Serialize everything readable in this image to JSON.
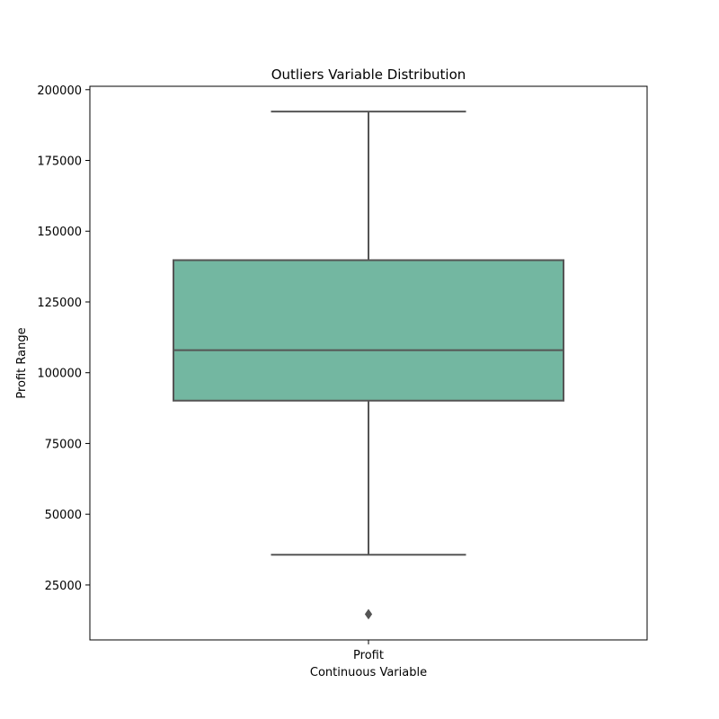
{
  "chart_data": {
    "type": "box",
    "title": "Outliers Variable Distribution",
    "xlabel": "Continuous Variable",
    "ylabel": "Profit Range",
    "categories": [
      "Profit"
    ],
    "boxes": [
      {
        "name": "Profit",
        "whisker_low": 35673,
        "q1": 90139,
        "median": 107978,
        "q3": 139766,
        "whisker_high": 192262,
        "outliers": [
          14681
        ]
      }
    ],
    "ylim": [
      5600,
      201200
    ],
    "yticks": [
      25000,
      50000,
      75000,
      100000,
      125000,
      150000,
      175000,
      200000
    ],
    "ytick_labels": [
      "25000",
      "50000",
      "75000",
      "100000",
      "125000",
      "150000",
      "175000",
      "200000"
    ],
    "grid": false,
    "colors": {
      "box_fill": "#73b7a1",
      "box_edge": "#555555",
      "axis": "#000000"
    }
  }
}
